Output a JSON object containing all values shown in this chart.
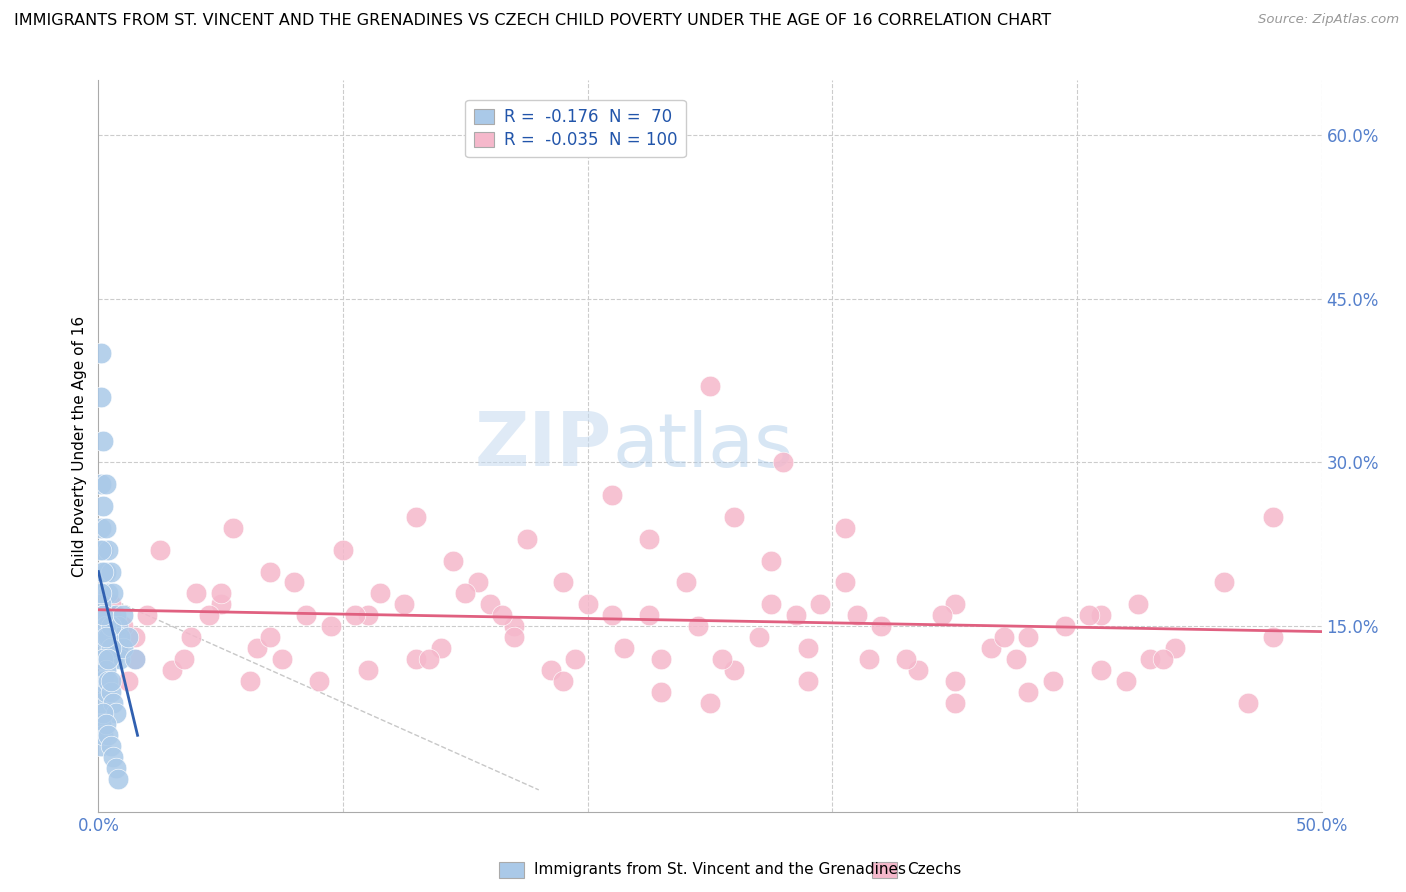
{
  "title": "IMMIGRANTS FROM ST. VINCENT AND THE GRENADINES VS CZECH CHILD POVERTY UNDER THE AGE OF 16 CORRELATION CHART",
  "source": "Source: ZipAtlas.com",
  "ylabel": "Child Poverty Under the Age of 16",
  "xlim": [
    0,
    0.5
  ],
  "ylim": [
    -0.02,
    0.65
  ],
  "ytick_vals": [
    0.0,
    0.15,
    0.3,
    0.45,
    0.6
  ],
  "ytick_labels": [
    "",
    "15.0%",
    "30.0%",
    "45.0%",
    "60.0%"
  ],
  "xtick_vals": [
    0.0,
    0.5
  ],
  "xtick_labels": [
    "0.0%",
    "50.0%"
  ],
  "grid_color": "#cccccc",
  "background_color": "#ffffff",
  "blue_color": "#aac9e8",
  "pink_color": "#f5b8cb",
  "blue_line_color": "#3060b0",
  "pink_line_color": "#e06080",
  "diag_line_color": "#c8c8c8",
  "tick_color": "#5580cc",
  "r1_val": "-0.176",
  "n1_val": "70",
  "r2_val": "-0.035",
  "n2_val": "100",
  "watermark_color": "#ddeeff",
  "blue_seed_x": [
    0.001,
    0.001,
    0.001,
    0.001,
    0.001,
    0.002,
    0.002,
    0.002,
    0.002,
    0.002,
    0.003,
    0.003,
    0.003,
    0.003,
    0.004,
    0.004,
    0.004,
    0.005,
    0.005,
    0.005,
    0.006,
    0.006,
    0.006,
    0.007,
    0.007,
    0.008,
    0.008,
    0.009,
    0.009,
    0.01,
    0.001,
    0.001,
    0.002,
    0.002,
    0.003,
    0.003,
    0.004,
    0.004,
    0.005,
    0.005,
    0.001,
    0.001,
    0.002,
    0.002,
    0.003,
    0.003,
    0.004,
    0.005,
    0.006,
    0.007,
    0.001,
    0.001,
    0.002,
    0.002,
    0.003,
    0.004,
    0.005,
    0.006,
    0.007,
    0.008,
    0.001,
    0.002,
    0.003,
    0.004,
    0.005,
    0.001,
    0.002,
    0.01,
    0.012,
    0.015
  ],
  "blue_seed_y": [
    0.4,
    0.36,
    0.28,
    0.24,
    0.2,
    0.32,
    0.26,
    0.22,
    0.18,
    0.14,
    0.28,
    0.24,
    0.2,
    0.16,
    0.22,
    0.18,
    0.14,
    0.2,
    0.16,
    0.12,
    0.18,
    0.15,
    0.12,
    0.16,
    0.14,
    0.15,
    0.13,
    0.14,
    0.12,
    0.13,
    0.17,
    0.15,
    0.16,
    0.14,
    0.15,
    0.13,
    0.14,
    0.12,
    0.15,
    0.13,
    0.1,
    0.08,
    0.12,
    0.1,
    0.11,
    0.09,
    0.1,
    0.09,
    0.08,
    0.07,
    0.06,
    0.04,
    0.07,
    0.05,
    0.06,
    0.05,
    0.04,
    0.03,
    0.02,
    0.01,
    0.18,
    0.16,
    0.14,
    0.12,
    0.1,
    0.22,
    0.2,
    0.16,
    0.14,
    0.12
  ],
  "pink_seed_x": [
    0.005,
    0.015,
    0.025,
    0.04,
    0.055,
    0.07,
    0.085,
    0.1,
    0.115,
    0.13,
    0.145,
    0.16,
    0.175,
    0.19,
    0.21,
    0.225,
    0.24,
    0.26,
    0.275,
    0.295,
    0.01,
    0.03,
    0.05,
    0.065,
    0.08,
    0.095,
    0.11,
    0.125,
    0.14,
    0.155,
    0.17,
    0.185,
    0.2,
    0.215,
    0.23,
    0.245,
    0.26,
    0.275,
    0.29,
    0.305,
    0.32,
    0.335,
    0.35,
    0.365,
    0.38,
    0.395,
    0.41,
    0.425,
    0.44,
    0.46,
    0.008,
    0.02,
    0.035,
    0.05,
    0.07,
    0.09,
    0.11,
    0.13,
    0.15,
    0.17,
    0.19,
    0.21,
    0.23,
    0.25,
    0.27,
    0.29,
    0.31,
    0.33,
    0.35,
    0.37,
    0.39,
    0.41,
    0.43,
    0.47,
    0.48,
    0.015,
    0.045,
    0.075,
    0.105,
    0.135,
    0.165,
    0.195,
    0.225,
    0.255,
    0.285,
    0.315,
    0.345,
    0.375,
    0.405,
    0.435,
    0.012,
    0.038,
    0.062,
    0.25,
    0.28,
    0.305,
    0.35,
    0.38,
    0.42,
    0.48
  ],
  "pink_seed_y": [
    0.17,
    0.14,
    0.22,
    0.18,
    0.24,
    0.2,
    0.16,
    0.22,
    0.18,
    0.25,
    0.21,
    0.17,
    0.23,
    0.19,
    0.27,
    0.23,
    0.19,
    0.25,
    0.21,
    0.17,
    0.15,
    0.11,
    0.17,
    0.13,
    0.19,
    0.15,
    0.11,
    0.17,
    0.13,
    0.19,
    0.15,
    0.11,
    0.17,
    0.13,
    0.09,
    0.15,
    0.11,
    0.17,
    0.13,
    0.19,
    0.15,
    0.11,
    0.17,
    0.13,
    0.09,
    0.15,
    0.11,
    0.17,
    0.13,
    0.19,
    0.13,
    0.16,
    0.12,
    0.18,
    0.14,
    0.1,
    0.16,
    0.12,
    0.18,
    0.14,
    0.1,
    0.16,
    0.12,
    0.08,
    0.14,
    0.1,
    0.16,
    0.12,
    0.08,
    0.14,
    0.1,
    0.16,
    0.12,
    0.08,
    0.14,
    0.12,
    0.16,
    0.12,
    0.16,
    0.12,
    0.16,
    0.12,
    0.16,
    0.12,
    0.16,
    0.12,
    0.16,
    0.12,
    0.16,
    0.12,
    0.1,
    0.14,
    0.1,
    0.37,
    0.3,
    0.24,
    0.1,
    0.14,
    0.1,
    0.25
  ]
}
